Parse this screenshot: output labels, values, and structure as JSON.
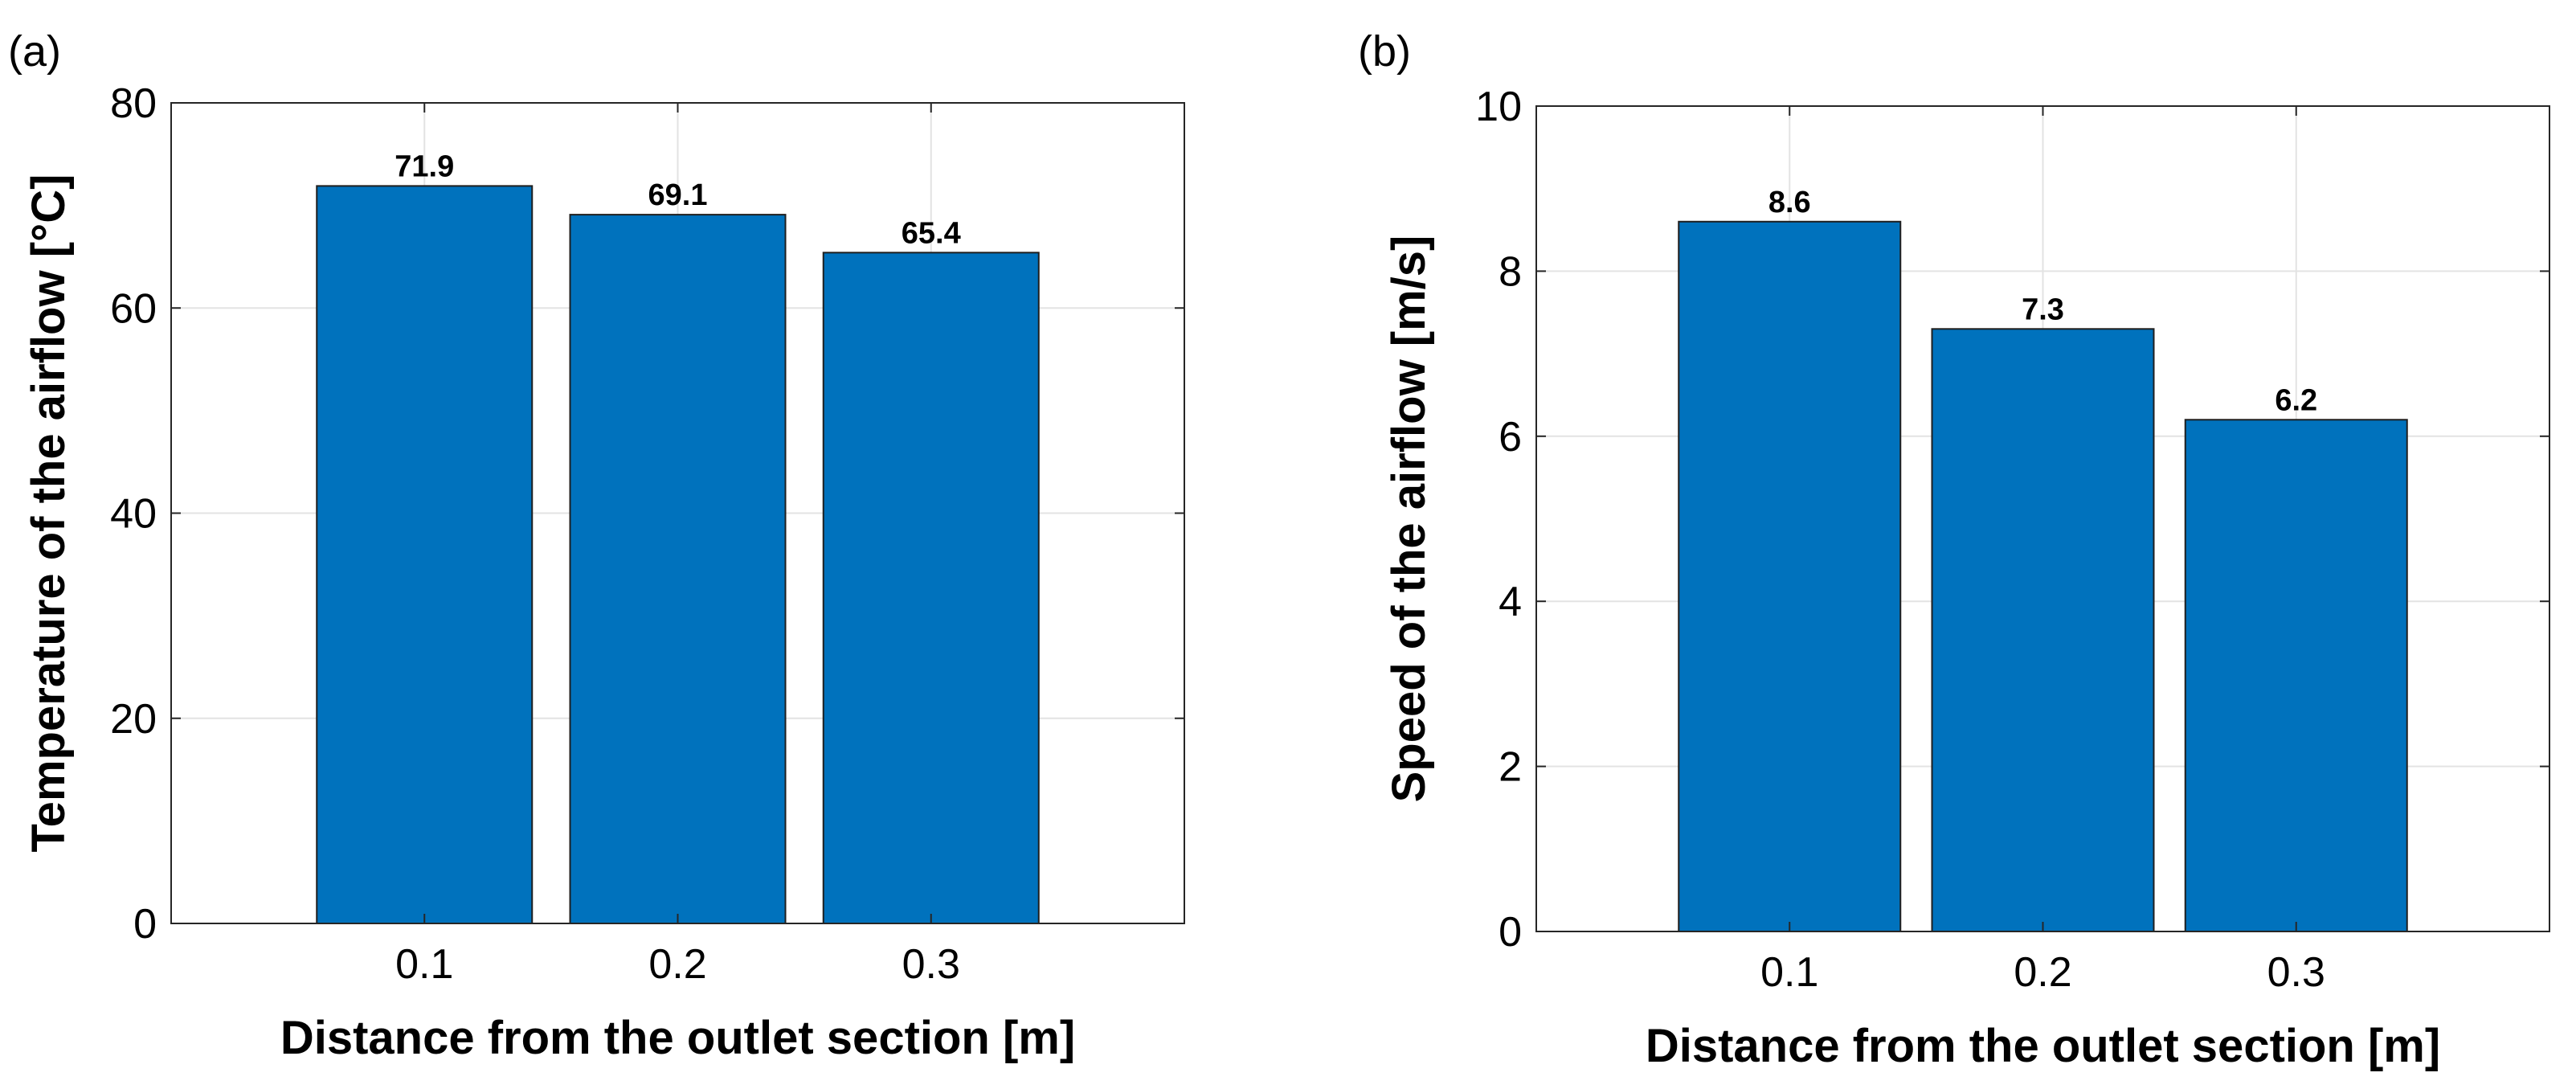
{
  "figure": {
    "panels": [
      "(a)",
      "(b)"
    ]
  },
  "chart_data": [
    {
      "type": "bar",
      "panel_label": "(a)",
      "categories": [
        "0.1",
        "0.2",
        "0.3"
      ],
      "values": [
        71.9,
        69.1,
        65.4
      ],
      "data_labels": [
        "71.9",
        "69.1",
        "65.4"
      ],
      "xlabel": "Distance from the outlet section [m]",
      "ylabel": "Temperature of the airflow [°C]",
      "ylim": [
        0,
        80
      ],
      "yticks": [
        0,
        20,
        40,
        60,
        80
      ],
      "ytick_labels": [
        "0",
        "20",
        "40",
        "60",
        "80"
      ],
      "grid": true,
      "bar_color": "#0072bd"
    },
    {
      "type": "bar",
      "panel_label": "(b)",
      "categories": [
        "0.1",
        "0.2",
        "0.3"
      ],
      "values": [
        8.6,
        7.3,
        6.2
      ],
      "data_labels": [
        "8.6",
        "7.3",
        "6.2"
      ],
      "xlabel": "Distance from the outlet section [m]",
      "ylabel": "Speed of the airflow [m/s]",
      "ylim": [
        0,
        10
      ],
      "yticks": [
        0,
        2,
        4,
        6,
        8,
        10
      ],
      "ytick_labels": [
        "0",
        "2",
        "4",
        "6",
        "8",
        "10"
      ],
      "grid": true,
      "bar_color": "#0072bd"
    }
  ]
}
